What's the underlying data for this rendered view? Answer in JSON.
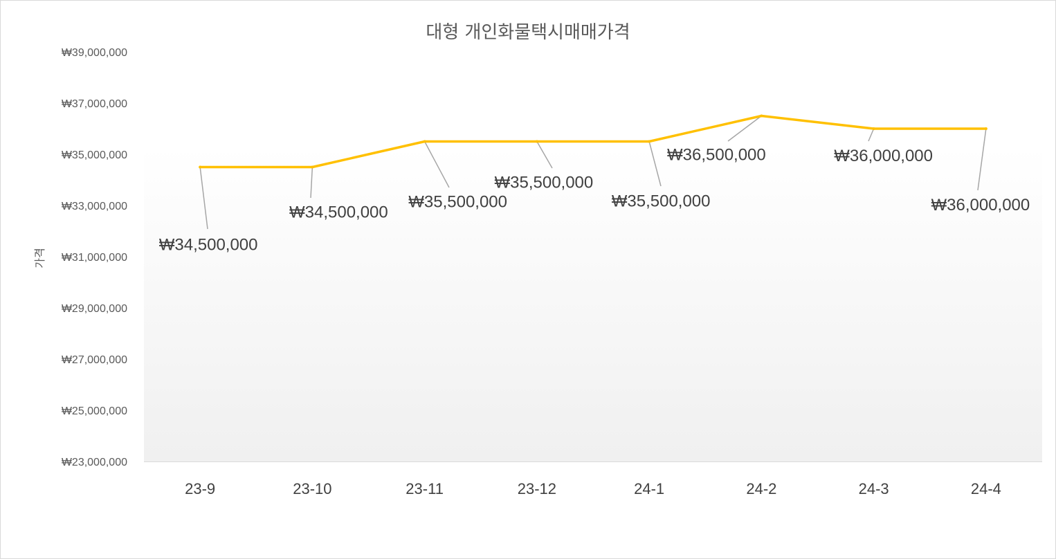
{
  "chart_data": {
    "type": "line",
    "title": "대형 개인화물택시매매가격",
    "xlabel": "",
    "ylabel": "가격",
    "categories": [
      "23-9",
      "23-10",
      "23-11",
      "23-12",
      "24-1",
      "24-2",
      "24-3",
      "24-4"
    ],
    "series": [
      {
        "values": [
          34500000,
          34500000,
          35500000,
          35500000,
          35500000,
          36500000,
          36000000,
          36000000
        ],
        "data_labels": [
          "₩34,500,000",
          "₩34,500,000",
          "₩35,500,000",
          "₩35,500,000",
          "₩35,500,000",
          "₩36,500,000",
          "₩36,000,000",
          "₩36,000,000"
        ],
        "color": "#FFC000"
      }
    ],
    "ylim": [
      23000000,
      39000000
    ],
    "yticks": [
      23000000,
      25000000,
      27000000,
      29000000,
      31000000,
      33000000,
      35000000,
      37000000,
      39000000
    ],
    "ytick_labels": [
      "₩23,000,000",
      "₩25,000,000",
      "₩27,000,000",
      "₩29,000,000",
      "₩31,000,000",
      "₩33,000,000",
      "₩35,000,000",
      "₩37,000,000",
      "₩39,000,000"
    ],
    "grid": false,
    "legend": "none"
  }
}
